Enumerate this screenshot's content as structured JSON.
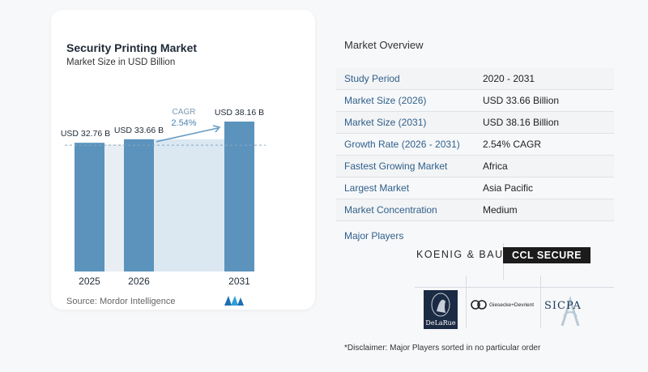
{
  "chart_data": {
    "type": "bar",
    "title": "Security Printing Market",
    "subtitle": "Market Size in USD Billion",
    "categories": [
      "2025",
      "2026",
      "2031"
    ],
    "values": [
      32.76,
      33.66,
      38.16
    ],
    "value_labels": [
      "USD 32.76 B",
      "USD 33.66 B",
      "USD 38.16 B"
    ],
    "annotation": {
      "label": "CAGR",
      "value": "2.54%"
    },
    "bar_color": "#5b93bd",
    "highlight_color": "#dbe8f2",
    "source": "Source:  Mordor Intelligence"
  },
  "overview": {
    "title": "Market Overview",
    "rows": [
      {
        "label": "Study Period",
        "value": "2020 - 2031"
      },
      {
        "label": "Market Size (2026)",
        "value": "USD 33.66 Billion"
      },
      {
        "label": "Market Size (2031)",
        "value": "USD 38.16 Billion"
      },
      {
        "label": "Growth Rate (2026 - 2031)",
        "value": "2.54% CAGR"
      },
      {
        "label": "Fastest Growing Market",
        "value": "Africa"
      },
      {
        "label": "Largest Market",
        "value": "Asia Pacific"
      },
      {
        "label": "Market Concentration",
        "value": "Medium"
      }
    ]
  },
  "players": {
    "title": "Major Players",
    "logos": {
      "koenig_bauer": "KOENIG & BAUER",
      "ccl": "CCL SECURE",
      "delarue": "DeLaRue",
      "gd": "Giesecke+Devrient",
      "sicpa": "SICPA"
    }
  },
  "disclaimer": "*Disclaimer: Major Players sorted in no particular order"
}
